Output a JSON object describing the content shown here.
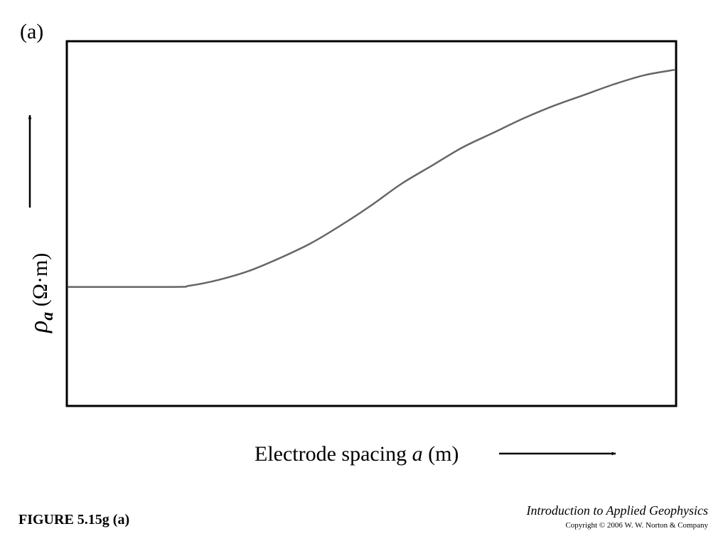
{
  "panel_label": "(a)",
  "figure_caption": "FIGURE 5.15g (a)",
  "book_title": "Introduction to Applied Geophysics",
  "copyright": "Copyright © 2006 W. W. Norton & Company",
  "chart_data": {
    "type": "line",
    "title": "",
    "xlabel": {
      "prefix": "Electrode spacing ",
      "variable": "a",
      "suffix": " (m)"
    },
    "ylabel": {
      "symbol": "ρ",
      "subscript": "a",
      "unit": "(Ω·m)"
    },
    "ticks": "none",
    "grid": false,
    "xlim": [
      0,
      100
    ],
    "ylim": [
      0,
      100
    ],
    "series": [
      {
        "color": "#666666",
        "x": [
          0,
          17.5,
          20,
          25,
          30,
          35,
          40,
          45,
          50,
          55,
          60,
          65,
          70,
          75,
          80,
          85,
          90,
          95,
          100
        ],
        "y": [
          32.5,
          32.5,
          32.8,
          34.5,
          37,
          40.5,
          44.5,
          49.5,
          55,
          61,
          66,
          71,
          75,
          79,
          82.5,
          85.5,
          88.5,
          91,
          92.5
        ]
      }
    ]
  }
}
